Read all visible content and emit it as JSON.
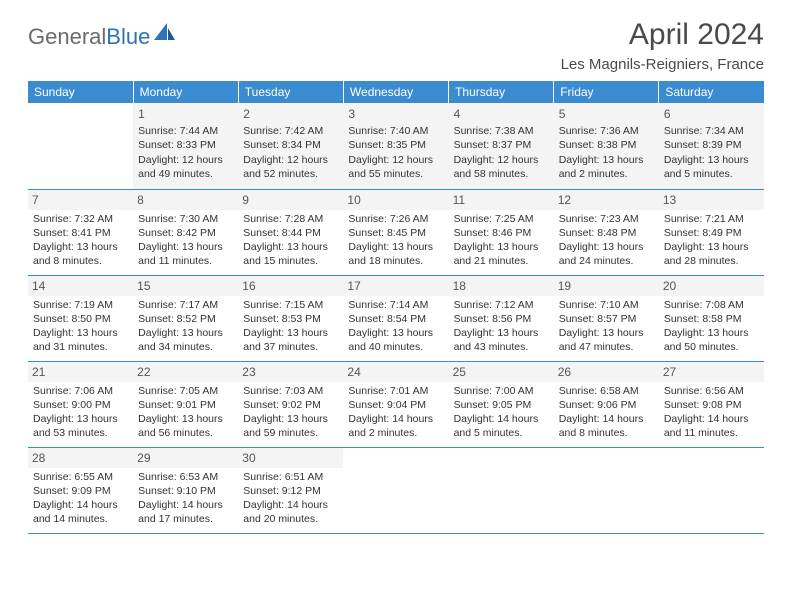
{
  "logo": {
    "general": "General",
    "blue": "Blue"
  },
  "title": "April 2024",
  "subtitle": "Les Magnils-Reigniers, France",
  "colors": {
    "header_bg": "#3b8bd0",
    "header_text": "#ffffff",
    "daynum_bg": "#f4f4f4",
    "border": "#3b8bd0",
    "text": "#333333",
    "title_text": "#4a4a4a",
    "logo_gray": "#6b6b6b",
    "logo_blue": "#2e74b5"
  },
  "weekdays": [
    "Sunday",
    "Monday",
    "Tuesday",
    "Wednesday",
    "Thursday",
    "Friday",
    "Saturday"
  ],
  "weeks": [
    [
      null,
      {
        "n": "1",
        "sr": "Sunrise: 7:44 AM",
        "ss": "Sunset: 8:33 PM",
        "d1": "Daylight: 12 hours",
        "d2": "and 49 minutes."
      },
      {
        "n": "2",
        "sr": "Sunrise: 7:42 AM",
        "ss": "Sunset: 8:34 PM",
        "d1": "Daylight: 12 hours",
        "d2": "and 52 minutes."
      },
      {
        "n": "3",
        "sr": "Sunrise: 7:40 AM",
        "ss": "Sunset: 8:35 PM",
        "d1": "Daylight: 12 hours",
        "d2": "and 55 minutes."
      },
      {
        "n": "4",
        "sr": "Sunrise: 7:38 AM",
        "ss": "Sunset: 8:37 PM",
        "d1": "Daylight: 12 hours",
        "d2": "and 58 minutes."
      },
      {
        "n": "5",
        "sr": "Sunrise: 7:36 AM",
        "ss": "Sunset: 8:38 PM",
        "d1": "Daylight: 13 hours",
        "d2": "and 2 minutes."
      },
      {
        "n": "6",
        "sr": "Sunrise: 7:34 AM",
        "ss": "Sunset: 8:39 PM",
        "d1": "Daylight: 13 hours",
        "d2": "and 5 minutes."
      }
    ],
    [
      {
        "n": "7",
        "sr": "Sunrise: 7:32 AM",
        "ss": "Sunset: 8:41 PM",
        "d1": "Daylight: 13 hours",
        "d2": "and 8 minutes."
      },
      {
        "n": "8",
        "sr": "Sunrise: 7:30 AM",
        "ss": "Sunset: 8:42 PM",
        "d1": "Daylight: 13 hours",
        "d2": "and 11 minutes."
      },
      {
        "n": "9",
        "sr": "Sunrise: 7:28 AM",
        "ss": "Sunset: 8:44 PM",
        "d1": "Daylight: 13 hours",
        "d2": "and 15 minutes."
      },
      {
        "n": "10",
        "sr": "Sunrise: 7:26 AM",
        "ss": "Sunset: 8:45 PM",
        "d1": "Daylight: 13 hours",
        "d2": "and 18 minutes."
      },
      {
        "n": "11",
        "sr": "Sunrise: 7:25 AM",
        "ss": "Sunset: 8:46 PM",
        "d1": "Daylight: 13 hours",
        "d2": "and 21 minutes."
      },
      {
        "n": "12",
        "sr": "Sunrise: 7:23 AM",
        "ss": "Sunset: 8:48 PM",
        "d1": "Daylight: 13 hours",
        "d2": "and 24 minutes."
      },
      {
        "n": "13",
        "sr": "Sunrise: 7:21 AM",
        "ss": "Sunset: 8:49 PM",
        "d1": "Daylight: 13 hours",
        "d2": "and 28 minutes."
      }
    ],
    [
      {
        "n": "14",
        "sr": "Sunrise: 7:19 AM",
        "ss": "Sunset: 8:50 PM",
        "d1": "Daylight: 13 hours",
        "d2": "and 31 minutes."
      },
      {
        "n": "15",
        "sr": "Sunrise: 7:17 AM",
        "ss": "Sunset: 8:52 PM",
        "d1": "Daylight: 13 hours",
        "d2": "and 34 minutes."
      },
      {
        "n": "16",
        "sr": "Sunrise: 7:15 AM",
        "ss": "Sunset: 8:53 PM",
        "d1": "Daylight: 13 hours",
        "d2": "and 37 minutes."
      },
      {
        "n": "17",
        "sr": "Sunrise: 7:14 AM",
        "ss": "Sunset: 8:54 PM",
        "d1": "Daylight: 13 hours",
        "d2": "and 40 minutes."
      },
      {
        "n": "18",
        "sr": "Sunrise: 7:12 AM",
        "ss": "Sunset: 8:56 PM",
        "d1": "Daylight: 13 hours",
        "d2": "and 43 minutes."
      },
      {
        "n": "19",
        "sr": "Sunrise: 7:10 AM",
        "ss": "Sunset: 8:57 PM",
        "d1": "Daylight: 13 hours",
        "d2": "and 47 minutes."
      },
      {
        "n": "20",
        "sr": "Sunrise: 7:08 AM",
        "ss": "Sunset: 8:58 PM",
        "d1": "Daylight: 13 hours",
        "d2": "and 50 minutes."
      }
    ],
    [
      {
        "n": "21",
        "sr": "Sunrise: 7:06 AM",
        "ss": "Sunset: 9:00 PM",
        "d1": "Daylight: 13 hours",
        "d2": "and 53 minutes."
      },
      {
        "n": "22",
        "sr": "Sunrise: 7:05 AM",
        "ss": "Sunset: 9:01 PM",
        "d1": "Daylight: 13 hours",
        "d2": "and 56 minutes."
      },
      {
        "n": "23",
        "sr": "Sunrise: 7:03 AM",
        "ss": "Sunset: 9:02 PM",
        "d1": "Daylight: 13 hours",
        "d2": "and 59 minutes."
      },
      {
        "n": "24",
        "sr": "Sunrise: 7:01 AM",
        "ss": "Sunset: 9:04 PM",
        "d1": "Daylight: 14 hours",
        "d2": "and 2 minutes."
      },
      {
        "n": "25",
        "sr": "Sunrise: 7:00 AM",
        "ss": "Sunset: 9:05 PM",
        "d1": "Daylight: 14 hours",
        "d2": "and 5 minutes."
      },
      {
        "n": "26",
        "sr": "Sunrise: 6:58 AM",
        "ss": "Sunset: 9:06 PM",
        "d1": "Daylight: 14 hours",
        "d2": "and 8 minutes."
      },
      {
        "n": "27",
        "sr": "Sunrise: 6:56 AM",
        "ss": "Sunset: 9:08 PM",
        "d1": "Daylight: 14 hours",
        "d2": "and 11 minutes."
      }
    ],
    [
      {
        "n": "28",
        "sr": "Sunrise: 6:55 AM",
        "ss": "Sunset: 9:09 PM",
        "d1": "Daylight: 14 hours",
        "d2": "and 14 minutes."
      },
      {
        "n": "29",
        "sr": "Sunrise: 6:53 AM",
        "ss": "Sunset: 9:10 PM",
        "d1": "Daylight: 14 hours",
        "d2": "and 17 minutes."
      },
      {
        "n": "30",
        "sr": "Sunrise: 6:51 AM",
        "ss": "Sunset: 9:12 PM",
        "d1": "Daylight: 14 hours",
        "d2": "and 20 minutes."
      },
      null,
      null,
      null,
      null
    ]
  ]
}
